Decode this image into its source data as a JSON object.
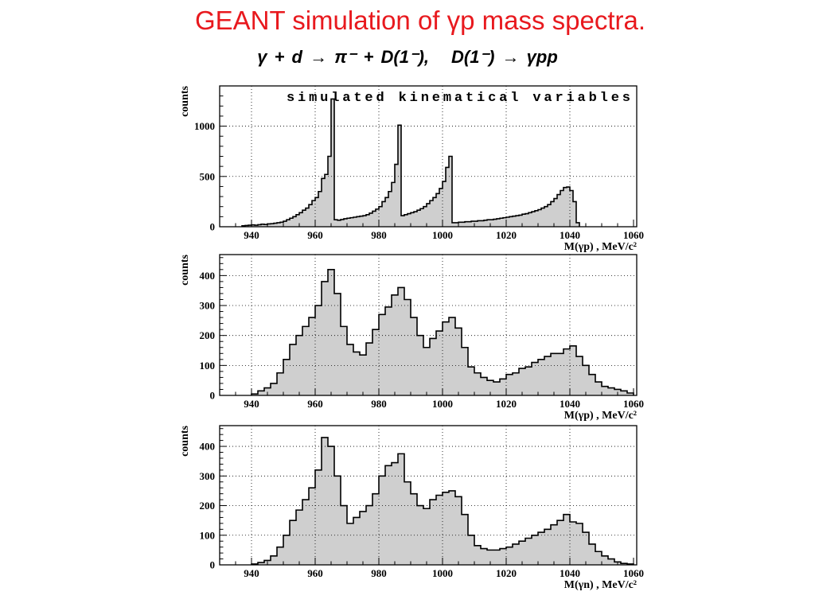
{
  "slide": {
    "title": "GEANT simulation of γp mass spectra.",
    "title_color": "#e8191e",
    "reaction": "γ + d → π⁻ + D(1⁻),",
    "decay": "D(1⁻) → γpp"
  },
  "chart_data": [
    {
      "type": "bar",
      "title": "simulated kinematical variables",
      "xlabel": "M(γp) , MeV/c²",
      "ylabel": "counts",
      "xlim": [
        930,
        1061
      ],
      "ylim": [
        0,
        1400
      ],
      "xticks": [
        940,
        960,
        980,
        1000,
        1020,
        1040,
        1060
      ],
      "yticks": [
        0,
        500,
        1000
      ],
      "grid": true,
      "fill_color": "#cfcfcf",
      "bin_start": 937,
      "bin_width": 1,
      "values": [
        10,
        12,
        15,
        18,
        15,
        20,
        25,
        22,
        28,
        30,
        35,
        40,
        45,
        55,
        70,
        85,
        100,
        120,
        140,
        165,
        185,
        220,
        260,
        290,
        350,
        480,
        520,
        700,
        1270,
        70,
        65,
        72,
        80,
        85,
        90,
        95,
        100,
        105,
        110,
        120,
        135,
        155,
        175,
        200,
        250,
        290,
        350,
        440,
        620,
        1010,
        110,
        120,
        130,
        140,
        150,
        165,
        180,
        200,
        230,
        260,
        290,
        330,
        380,
        450,
        590,
        700,
        40,
        40,
        45,
        45,
        50,
        50,
        55,
        55,
        60,
        60,
        65,
        70,
        70,
        75,
        80,
        85,
        90,
        95,
        100,
        105,
        110,
        115,
        125,
        130,
        140,
        150,
        160,
        170,
        185,
        200,
        220,
        250,
        280,
        320,
        360,
        390,
        395,
        360,
        250,
        40
      ]
    },
    {
      "type": "bar",
      "title": "",
      "xlabel": "M(γp) , MeV/c²",
      "ylabel": "counts",
      "xlim": [
        930,
        1061
      ],
      "ylim": [
        0,
        470
      ],
      "xticks": [
        940,
        960,
        980,
        1000,
        1020,
        1040,
        1060
      ],
      "yticks": [
        0,
        100,
        200,
        300,
        400
      ],
      "grid": true,
      "fill_color": "#cfcfcf",
      "bin_start": 940,
      "bin_width": 2,
      "values": [
        5,
        15,
        25,
        40,
        75,
        120,
        170,
        200,
        230,
        260,
        300,
        380,
        420,
        340,
        230,
        170,
        145,
        135,
        175,
        220,
        270,
        295,
        335,
        360,
        320,
        260,
        200,
        160,
        190,
        215,
        245,
        260,
        225,
        160,
        95,
        75,
        60,
        50,
        45,
        55,
        70,
        75,
        90,
        95,
        110,
        120,
        130,
        140,
        140,
        155,
        165,
        130,
        100,
        70,
        45,
        30,
        25,
        20,
        15,
        8
      ]
    },
    {
      "type": "bar",
      "title": "",
      "xlabel": "M(γn) , MeV/c²",
      "ylabel": "counts",
      "xlim": [
        930,
        1061
      ],
      "ylim": [
        0,
        470
      ],
      "xticks": [
        940,
        960,
        980,
        1000,
        1020,
        1040,
        1060
      ],
      "yticks": [
        0,
        100,
        200,
        300,
        400
      ],
      "grid": true,
      "fill_color": "#cfcfcf",
      "bin_start": 940,
      "bin_width": 2,
      "values": [
        3,
        8,
        15,
        30,
        60,
        100,
        150,
        185,
        220,
        260,
        320,
        430,
        400,
        300,
        200,
        140,
        160,
        180,
        200,
        240,
        300,
        335,
        345,
        375,
        280,
        240,
        200,
        190,
        220,
        235,
        245,
        250,
        230,
        170,
        100,
        65,
        55,
        50,
        50,
        55,
        60,
        70,
        80,
        90,
        100,
        110,
        120,
        135,
        150,
        170,
        145,
        140,
        110,
        70,
        45,
        30,
        20,
        10,
        5,
        3
      ]
    }
  ]
}
